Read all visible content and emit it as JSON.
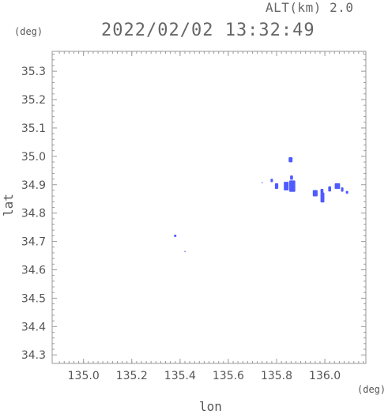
{
  "header": {
    "alt_label": "ALT(km) 2.0",
    "timestamp": "2022/02/02 13:32:49"
  },
  "chart_data": {
    "type": "scatter",
    "xlabel": "lon",
    "ylabel": "lat",
    "x_unit": "(deg)",
    "y_unit": "(deg)",
    "xlim": [
      134.87,
      136.17
    ],
    "ylim": [
      34.27,
      35.37
    ],
    "xticks": [
      "135.0",
      "135.2",
      "135.4",
      "135.6",
      "135.8",
      "136.0"
    ],
    "yticks": [
      "34.3",
      "34.4",
      "34.5",
      "34.6",
      "34.7",
      "34.8",
      "34.9",
      "35.0",
      "35.1",
      "35.2",
      "35.3"
    ],
    "grid": false,
    "colors": {
      "echo": "#4f5bff",
      "frame": "#999999"
    },
    "cells": [
      {
        "lon": 135.38,
        "lat": 34.72,
        "w": 0.01,
        "h": 0.008
      },
      {
        "lon": 135.42,
        "lat": 34.665,
        "w": 0.004,
        "h": 0.004
      },
      {
        "lon": 135.74,
        "lat": 34.907,
        "w": 0.004,
        "h": 0.004
      },
      {
        "lon": 135.78,
        "lat": 34.915,
        "w": 0.01,
        "h": 0.012
      },
      {
        "lon": 135.8,
        "lat": 34.895,
        "w": 0.014,
        "h": 0.02
      },
      {
        "lon": 135.84,
        "lat": 34.895,
        "w": 0.02,
        "h": 0.03
      },
      {
        "lon": 135.865,
        "lat": 34.895,
        "w": 0.025,
        "h": 0.04
      },
      {
        "lon": 135.862,
        "lat": 34.925,
        "w": 0.012,
        "h": 0.015
      },
      {
        "lon": 135.858,
        "lat": 34.988,
        "w": 0.016,
        "h": 0.018
      },
      {
        "lon": 135.96,
        "lat": 34.87,
        "w": 0.02,
        "h": 0.022
      },
      {
        "lon": 135.99,
        "lat": 34.855,
        "w": 0.016,
        "h": 0.035
      },
      {
        "lon": 135.988,
        "lat": 34.878,
        "w": 0.012,
        "h": 0.015
      },
      {
        "lon": 136.02,
        "lat": 34.885,
        "w": 0.012,
        "h": 0.018
      },
      {
        "lon": 136.052,
        "lat": 34.895,
        "w": 0.022,
        "h": 0.02
      },
      {
        "lon": 136.072,
        "lat": 34.883,
        "w": 0.01,
        "h": 0.015
      },
      {
        "lon": 136.092,
        "lat": 34.873,
        "w": 0.01,
        "h": 0.01
      }
    ]
  }
}
